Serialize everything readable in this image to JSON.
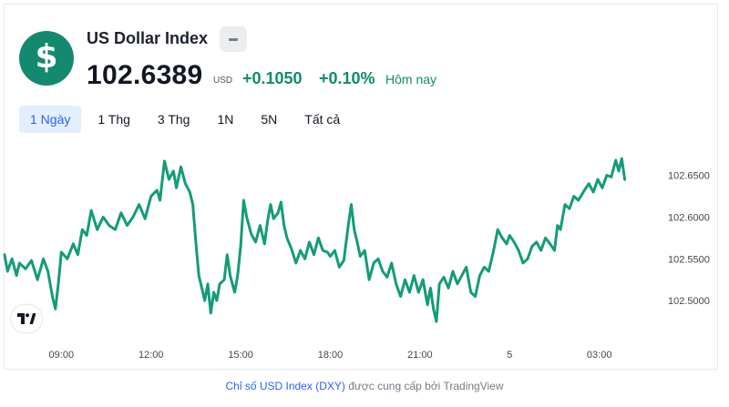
{
  "header": {
    "title": "US Dollar Index",
    "logo_glyph": "$",
    "price": "102.6389",
    "currency": "USD",
    "change_abs": "+0.1050",
    "change_pct": "+0.10%",
    "period_label": "Hôm nay"
  },
  "tabs": [
    {
      "label": "1 Ngày",
      "active": true
    },
    {
      "label": "1 Thg",
      "active": false
    },
    {
      "label": "3 Thg",
      "active": false
    },
    {
      "label": "1N",
      "active": false
    },
    {
      "label": "5N",
      "active": false
    },
    {
      "label": "Tất cả",
      "active": false
    }
  ],
  "colors": {
    "line": "#149b7a",
    "accent_green": "#0f8b6c",
    "logo_bg": "#138a6f",
    "link_blue": "#2962ff"
  },
  "chart_data": {
    "type": "line",
    "y_ticks": [
      "102.6500",
      "102.6000",
      "102.5500",
      "102.5000"
    ],
    "y_tick_values": [
      102.65,
      102.6,
      102.55,
      102.5
    ],
    "x_ticks": [
      {
        "label": "09:00",
        "hour": 9
      },
      {
        "label": "12:00",
        "hour": 12
      },
      {
        "label": "15:00",
        "hour": 15
      },
      {
        "label": "18:00",
        "hour": 18
      },
      {
        "label": "21:00",
        "hour": 21
      },
      {
        "label": "5",
        "hour": 24
      },
      {
        "label": "03:00",
        "hour": 27
      }
    ],
    "ylim": [
      102.462,
      102.68
    ],
    "xlim_hours": [
      7.1,
      28.9
    ],
    "grid": false,
    "series": [
      {
        "points": [
          [
            7.1,
            102.555
          ],
          [
            7.2,
            102.535
          ],
          [
            7.35,
            102.55
          ],
          [
            7.5,
            102.53
          ],
          [
            7.6,
            102.545
          ],
          [
            7.8,
            102.538
          ],
          [
            8.0,
            102.548
          ],
          [
            8.2,
            102.525
          ],
          [
            8.4,
            102.55
          ],
          [
            8.55,
            102.535
          ],
          [
            8.7,
            102.505
          ],
          [
            8.8,
            102.49
          ],
          [
            8.9,
            102.52
          ],
          [
            9.0,
            102.558
          ],
          [
            9.2,
            102.55
          ],
          [
            9.4,
            102.568
          ],
          [
            9.55,
            102.555
          ],
          [
            9.7,
            102.585
          ],
          [
            9.85,
            102.578
          ],
          [
            10.0,
            102.608
          ],
          [
            10.2,
            102.585
          ],
          [
            10.4,
            102.6
          ],
          [
            10.6,
            102.59
          ],
          [
            10.8,
            102.585
          ],
          [
            11.0,
            102.605
          ],
          [
            11.2,
            102.59
          ],
          [
            11.4,
            102.6
          ],
          [
            11.6,
            102.615
          ],
          [
            11.8,
            102.598
          ],
          [
            12.0,
            102.625
          ],
          [
            12.2,
            102.632
          ],
          [
            12.3,
            102.62
          ],
          [
            12.45,
            102.667
          ],
          [
            12.6,
            102.645
          ],
          [
            12.75,
            102.655
          ],
          [
            12.85,
            102.635
          ],
          [
            13.0,
            102.66
          ],
          [
            13.15,
            102.64
          ],
          [
            13.3,
            102.63
          ],
          [
            13.4,
            102.615
          ],
          [
            13.5,
            102.57
          ],
          [
            13.6,
            102.53
          ],
          [
            13.7,
            102.515
          ],
          [
            13.8,
            102.5
          ],
          [
            13.9,
            102.52
          ],
          [
            14.0,
            102.485
          ],
          [
            14.1,
            102.51
          ],
          [
            14.2,
            102.5
          ],
          [
            14.3,
            102.52
          ],
          [
            14.45,
            102.525
          ],
          [
            14.55,
            102.555
          ],
          [
            14.65,
            102.53
          ],
          [
            14.8,
            102.51
          ],
          [
            14.9,
            102.53
          ],
          [
            15.0,
            102.565
          ],
          [
            15.1,
            102.62
          ],
          [
            15.2,
            102.6
          ],
          [
            15.35,
            102.58
          ],
          [
            15.5,
            102.57
          ],
          [
            15.65,
            102.59
          ],
          [
            15.8,
            102.568
          ],
          [
            15.9,
            102.595
          ],
          [
            16.0,
            102.615
          ],
          [
            16.1,
            102.598
          ],
          [
            16.25,
            102.605
          ],
          [
            16.35,
            102.618
          ],
          [
            16.45,
            102.59
          ],
          [
            16.55,
            102.575
          ],
          [
            16.7,
            102.562
          ],
          [
            16.85,
            102.545
          ],
          [
            17.0,
            102.56
          ],
          [
            17.15,
            102.55
          ],
          [
            17.3,
            102.57
          ],
          [
            17.45,
            102.555
          ],
          [
            17.6,
            102.575
          ],
          [
            17.75,
            102.56
          ],
          [
            17.9,
            102.558
          ],
          [
            18.0,
            102.553
          ],
          [
            18.15,
            102.56
          ],
          [
            18.3,
            102.54
          ],
          [
            18.45,
            102.548
          ],
          [
            18.6,
            102.59
          ],
          [
            18.7,
            102.615
          ],
          [
            18.8,
            102.585
          ],
          [
            18.9,
            102.57
          ],
          [
            19.0,
            102.553
          ],
          [
            19.15,
            102.56
          ],
          [
            19.3,
            102.525
          ],
          [
            19.45,
            102.545
          ],
          [
            19.6,
            102.55
          ],
          [
            19.75,
            102.535
          ],
          [
            19.9,
            102.528
          ],
          [
            20.05,
            102.545
          ],
          [
            20.2,
            102.52
          ],
          [
            20.35,
            102.505
          ],
          [
            20.5,
            102.525
          ],
          [
            20.65,
            102.51
          ],
          [
            20.8,
            102.53
          ],
          [
            20.95,
            102.51
          ],
          [
            21.1,
            102.525
          ],
          [
            21.25,
            102.495
          ],
          [
            21.35,
            102.515
          ],
          [
            21.45,
            102.49
          ],
          [
            21.55,
            102.475
          ],
          [
            21.65,
            102.52
          ],
          [
            21.8,
            102.528
          ],
          [
            21.95,
            102.515
          ],
          [
            22.1,
            102.535
          ],
          [
            22.25,
            102.52
          ],
          [
            22.4,
            102.53
          ],
          [
            22.55,
            102.54
          ],
          [
            22.7,
            102.51
          ],
          [
            22.85,
            102.505
          ],
          [
            23.0,
            102.53
          ],
          [
            23.15,
            102.54
          ],
          [
            23.3,
            102.535
          ],
          [
            23.45,
            102.558
          ],
          [
            23.6,
            102.585
          ],
          [
            23.75,
            102.575
          ],
          [
            23.9,
            102.568
          ],
          [
            24.0,
            102.578
          ],
          [
            24.15,
            102.57
          ],
          [
            24.3,
            102.56
          ],
          [
            24.45,
            102.545
          ],
          [
            24.6,
            102.55
          ],
          [
            24.75,
            102.565
          ],
          [
            24.9,
            102.57
          ],
          [
            25.05,
            102.56
          ],
          [
            25.2,
            102.575
          ],
          [
            25.35,
            102.568
          ],
          [
            25.5,
            102.56
          ],
          [
            25.6,
            102.59
          ],
          [
            25.7,
            102.585
          ],
          [
            25.85,
            102.615
          ],
          [
            26.0,
            102.61
          ],
          [
            26.15,
            102.625
          ],
          [
            26.3,
            102.62
          ],
          [
            26.5,
            102.632
          ],
          [
            26.65,
            102.64
          ],
          [
            26.8,
            102.63
          ],
          [
            26.95,
            102.645
          ],
          [
            27.1,
            102.635
          ],
          [
            27.25,
            102.65
          ],
          [
            27.4,
            102.648
          ],
          [
            27.55,
            102.668
          ],
          [
            27.65,
            102.655
          ],
          [
            27.75,
            102.67
          ],
          [
            27.85,
            102.645
          ]
        ]
      }
    ]
  },
  "footer": {
    "link_text": "Chỉ số USD Index (DXY)",
    "rest_text": " được cung cấp bởi TradingView"
  }
}
